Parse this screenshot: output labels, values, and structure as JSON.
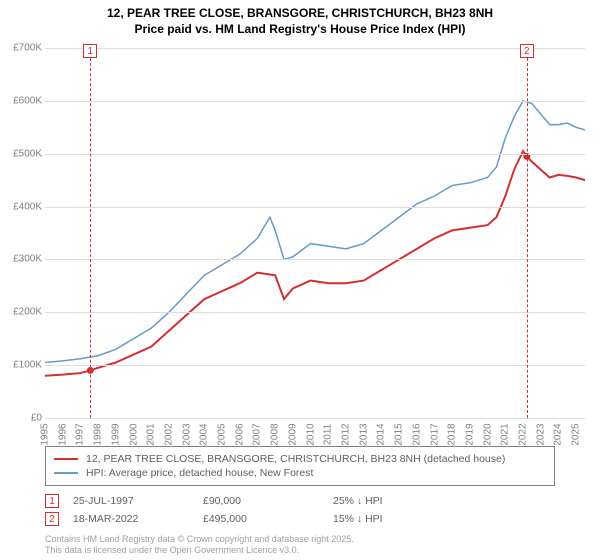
{
  "title_line1": "12, PEAR TREE CLOSE, BRANSGORE, CHRISTCHURCH, BH23 8NH",
  "title_line2": "Price paid vs. HM Land Registry's House Price Index (HPI)",
  "chart": {
    "type": "line",
    "x_range": [
      1995,
      2025.5
    ],
    "y_range": [
      0,
      700000
    ],
    "y_ticks": [
      0,
      100000,
      200000,
      300000,
      400000,
      500000,
      600000,
      700000
    ],
    "y_tick_labels": [
      "£0",
      "£100K",
      "£200K",
      "£300K",
      "£400K",
      "£500K",
      "£600K",
      "£700K"
    ],
    "x_ticks": [
      1995,
      1996,
      1997,
      1998,
      1999,
      2000,
      2001,
      2002,
      2003,
      2004,
      2005,
      2006,
      2007,
      2008,
      2009,
      2010,
      2011,
      2012,
      2013,
      2014,
      2015,
      2016,
      2017,
      2018,
      2019,
      2020,
      2021,
      2022,
      2023,
      2024,
      2025
    ],
    "grid_color": "#dcdcdc",
    "background_color": "#ffffff",
    "label_color": "#808080",
    "label_fontsize": 10,
    "title_fontsize": 12,
    "series": [
      {
        "name": "property",
        "label": "12, PEAR TREE CLOSE, BRANSGORE, CHRISTCHURCH, BH23 8NH (detached house)",
        "color": "#d32f2f",
        "line_width": 2,
        "data": [
          [
            1995,
            80000
          ],
          [
            1996,
            82000
          ],
          [
            1997,
            85000
          ],
          [
            1997.56,
            90000
          ],
          [
            1998,
            95000
          ],
          [
            1999,
            105000
          ],
          [
            2000,
            120000
          ],
          [
            2001,
            135000
          ],
          [
            2002,
            165000
          ],
          [
            2003,
            195000
          ],
          [
            2004,
            225000
          ],
          [
            2005,
            240000
          ],
          [
            2006,
            255000
          ],
          [
            2007,
            275000
          ],
          [
            2008,
            270000
          ],
          [
            2008.5,
            225000
          ],
          [
            2009,
            245000
          ],
          [
            2010,
            260000
          ],
          [
            2011,
            255000
          ],
          [
            2012,
            255000
          ],
          [
            2013,
            260000
          ],
          [
            2014,
            280000
          ],
          [
            2015,
            300000
          ],
          [
            2016,
            320000
          ],
          [
            2017,
            340000
          ],
          [
            2018,
            355000
          ],
          [
            2019,
            360000
          ],
          [
            2020,
            365000
          ],
          [
            2020.5,
            380000
          ],
          [
            2021,
            420000
          ],
          [
            2021.5,
            470000
          ],
          [
            2022,
            505000
          ],
          [
            2022.21,
            495000
          ],
          [
            2022.5,
            485000
          ],
          [
            2023,
            470000
          ],
          [
            2023.5,
            455000
          ],
          [
            2024,
            460000
          ],
          [
            2024.5,
            458000
          ],
          [
            2025,
            455000
          ],
          [
            2025.5,
            450000
          ]
        ]
      },
      {
        "name": "hpi",
        "label": "HPI: Average price, detached house, New Forest",
        "color": "#6699cc",
        "line_width": 1.5,
        "data": [
          [
            1995,
            105000
          ],
          [
            1996,
            108000
          ],
          [
            1997,
            112000
          ],
          [
            1998,
            118000
          ],
          [
            1999,
            130000
          ],
          [
            2000,
            150000
          ],
          [
            2001,
            170000
          ],
          [
            2002,
            200000
          ],
          [
            2003,
            235000
          ],
          [
            2004,
            270000
          ],
          [
            2005,
            290000
          ],
          [
            2006,
            310000
          ],
          [
            2007,
            340000
          ],
          [
            2007.7,
            380000
          ],
          [
            2008,
            355000
          ],
          [
            2008.5,
            300000
          ],
          [
            2009,
            305000
          ],
          [
            2010,
            330000
          ],
          [
            2011,
            325000
          ],
          [
            2012,
            320000
          ],
          [
            2013,
            330000
          ],
          [
            2014,
            355000
          ],
          [
            2015,
            380000
          ],
          [
            2016,
            405000
          ],
          [
            2017,
            420000
          ],
          [
            2018,
            440000
          ],
          [
            2019,
            445000
          ],
          [
            2020,
            455000
          ],
          [
            2020.5,
            475000
          ],
          [
            2021,
            530000
          ],
          [
            2021.5,
            570000
          ],
          [
            2022,
            600000
          ],
          [
            2022.5,
            595000
          ],
          [
            2023,
            575000
          ],
          [
            2023.5,
            555000
          ],
          [
            2024,
            555000
          ],
          [
            2024.5,
            558000
          ],
          [
            2025,
            550000
          ],
          [
            2025.5,
            545000
          ]
        ]
      }
    ],
    "markers": [
      {
        "num": "1",
        "x": 1997.56,
        "y": 90000
      },
      {
        "num": "2",
        "x": 2022.21,
        "y": 495000
      }
    ],
    "marker_border_color": "#d32f2f"
  },
  "legend": {
    "items": [
      {
        "color": "#d32f2f",
        "label": "12, PEAR TREE CLOSE, BRANSGORE, CHRISTCHURCH, BH23 8NH (detached house)"
      },
      {
        "color": "#6699cc",
        "label": "HPI: Average price, detached house, New Forest"
      }
    ]
  },
  "events": [
    {
      "num": "1",
      "date": "25-JUL-1997",
      "price": "£90,000",
      "delta": "25% ↓ HPI"
    },
    {
      "num": "2",
      "date": "18-MAR-2022",
      "price": "£495,000",
      "delta": "15% ↓ HPI"
    }
  ],
  "footnote_line1": "Contains HM Land Registry data © Crown copyright and database right 2025.",
  "footnote_line2": "This data is licensed under the Open Government Licence v3.0."
}
